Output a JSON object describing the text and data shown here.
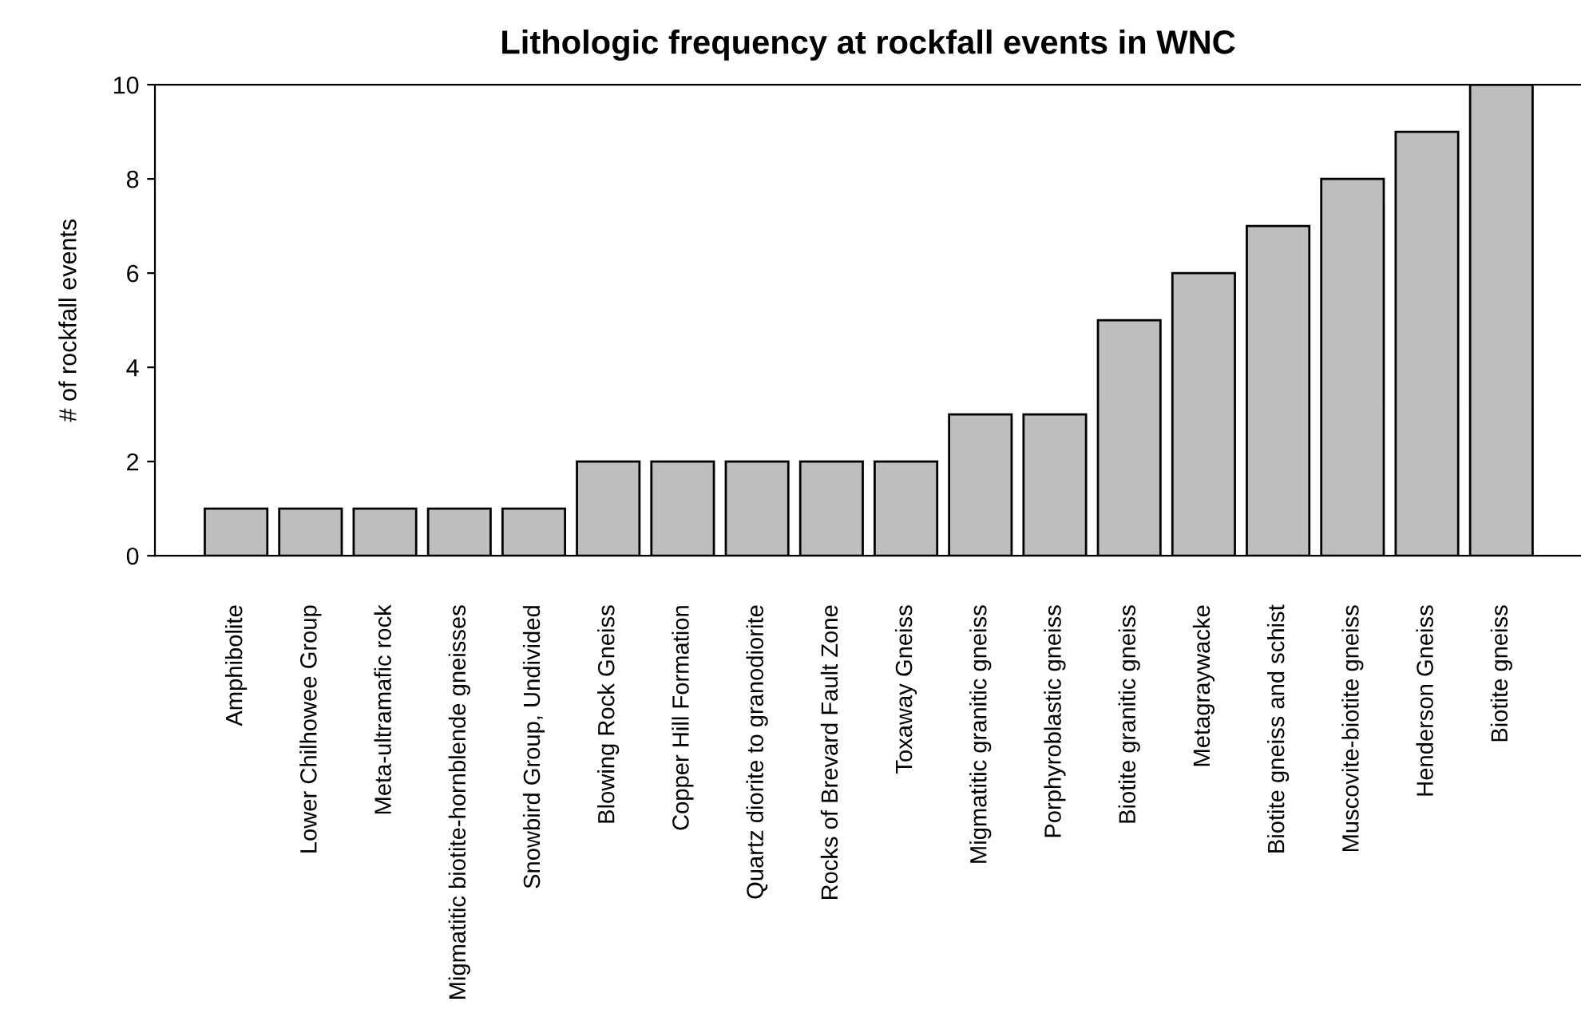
{
  "chart_data": {
    "type": "bar",
    "title": "Lithologic frequency at rockfall events in WNC",
    "ylabel": "# of rockfall events",
    "categories": [
      "Amphibolite",
      "Lower Chilhowee Group",
      "Meta-ultramafic rock",
      "Migmatitic biotite-hornblende gneisses",
      "Snowbird Group, Undivided",
      "Blowing Rock Gneiss",
      "Copper Hill Formation",
      "Quartz diorite to granodiorite",
      "Rocks of Brevard Fault Zone",
      "Toxaway Gneiss",
      "Migmatitic granitic gneiss",
      "Porphyroblastic gneiss",
      "Biotite granitic gneiss",
      "Metagraywacke",
      "Biotite gneiss and schist",
      "Muscovite-biotite gneiss",
      "Henderson Gneiss",
      "Biotite gneiss"
    ],
    "values": [
      1,
      1,
      1,
      1,
      1,
      2,
      2,
      2,
      2,
      2,
      3,
      3,
      5,
      6,
      7,
      8,
      9,
      10
    ],
    "color": "#bebebe",
    "ylim": [
      0,
      10
    ],
    "yticks": [
      0,
      2,
      4,
      6,
      8,
      10
    ],
    "grid": false,
    "legend": false
  }
}
